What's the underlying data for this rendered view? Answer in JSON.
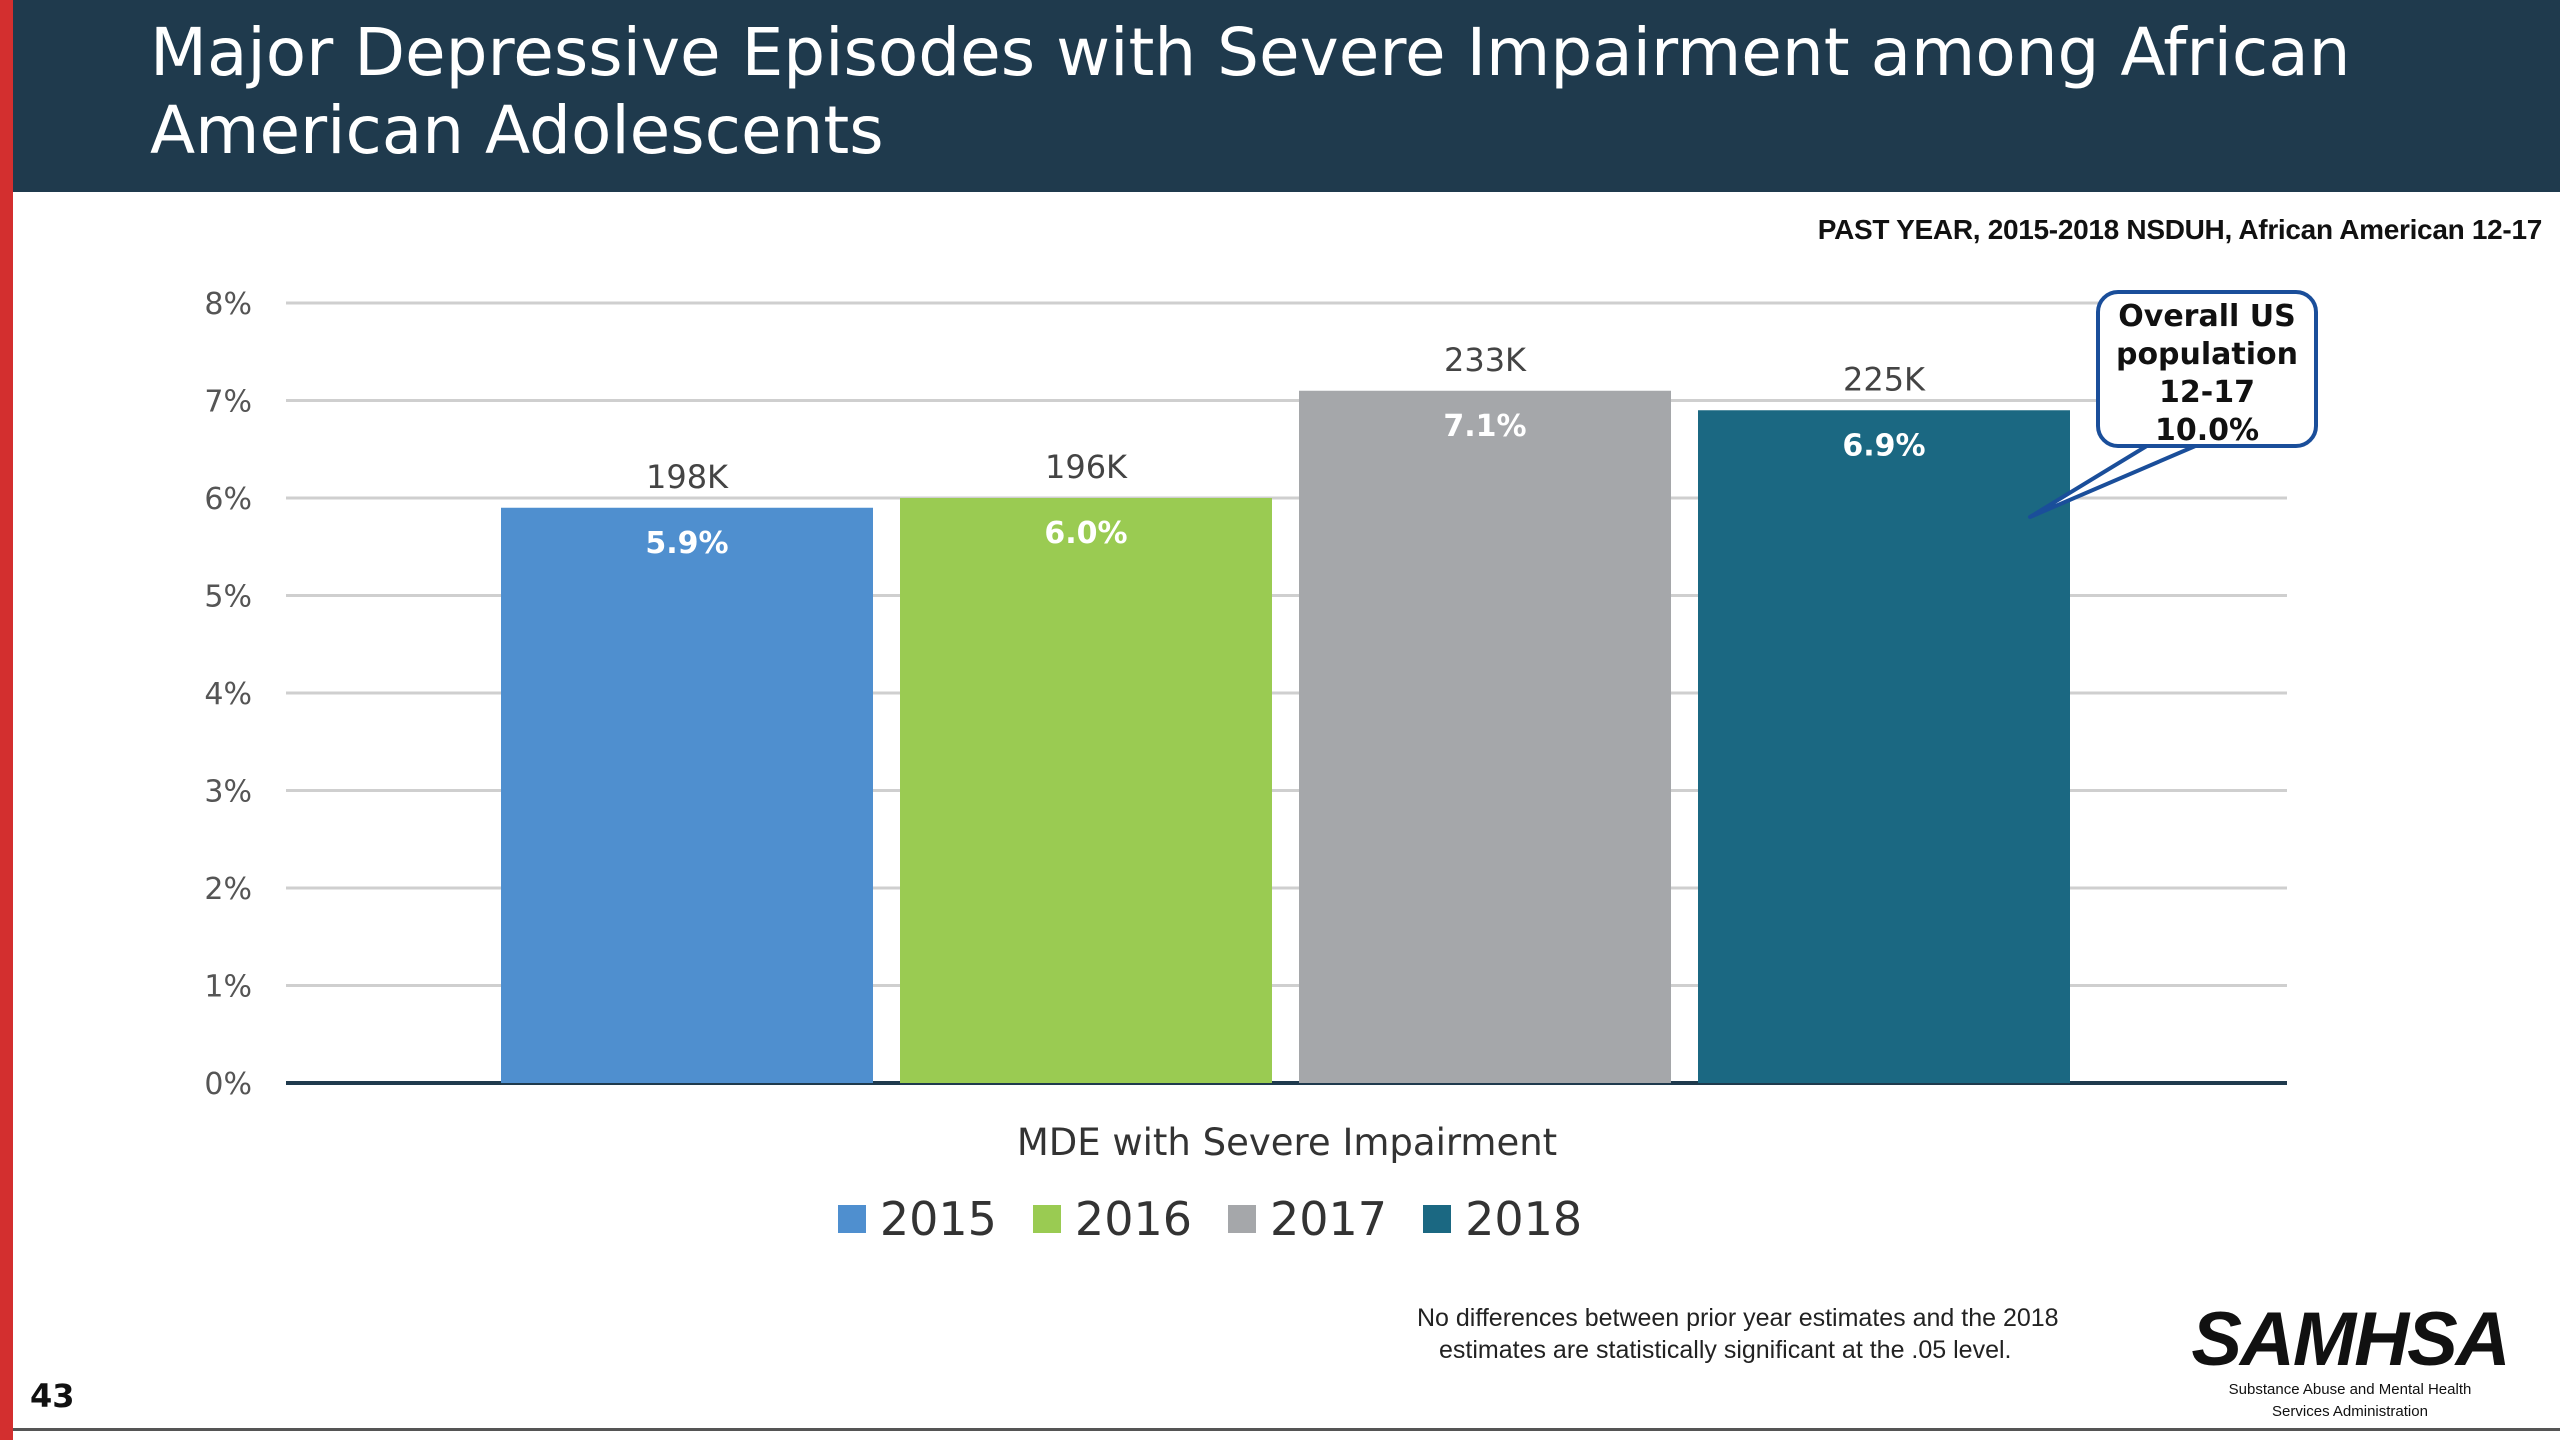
{
  "slide": {
    "title": "Major Depressive Episodes with Severe Impairment among African American Adolescents",
    "subtitle": "PAST YEAR, 2015-2018  NSDUH, African American 12-17",
    "number": "43",
    "footnote_line1": "No differences between prior year estimates and the 2018",
    "footnote_line2": "estimates are statistically significant at the .05 level.",
    "colors": {
      "header": "#1f3a4d",
      "accent_bar": "#d32f2f"
    }
  },
  "callout": {
    "lines": [
      "Overall US",
      "population",
      "12-17",
      "10.0%"
    ],
    "border_color": "#1a4e9a"
  },
  "logo": {
    "word": "SAMHSA",
    "sub_line1": "Substance Abuse and Mental Health",
    "sub_line2": "Services Administration"
  },
  "chart_data": {
    "type": "bar",
    "title": "",
    "xlabel": "MDE with Severe Impairment",
    "ylabel": "",
    "ylim": [
      0,
      8
    ],
    "yticks": [
      0,
      1,
      2,
      3,
      4,
      5,
      6,
      7,
      8
    ],
    "ytick_labels": [
      "0%",
      "1%",
      "2%",
      "3%",
      "4%",
      "5%",
      "6%",
      "7%",
      "8%"
    ],
    "grid": true,
    "legend_position": "bottom",
    "categories": [
      "MDE with Severe Impairment"
    ],
    "series": [
      {
        "name": "2015",
        "value": 5.9,
        "label": "5.9%",
        "count_label": "198K",
        "color": "#4f8fcf"
      },
      {
        "name": "2016",
        "value": 6.0,
        "label": "6.0%",
        "count_label": "196K",
        "color": "#9acb52"
      },
      {
        "name": "2017",
        "value": 7.1,
        "label": "7.1%",
        "count_label": "233K",
        "color": "#a5a7aa"
      },
      {
        "name": "2018",
        "value": 6.9,
        "label": "6.9%",
        "count_label": "225K",
        "color": "#1b6882"
      }
    ]
  }
}
